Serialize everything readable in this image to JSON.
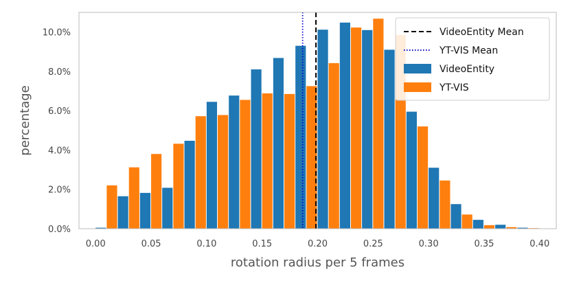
{
  "chart_data": {
    "type": "bar",
    "xlabel": "rotation radius per 5 frames",
    "ylabel": "percentage",
    "xlim": [
      -0.015,
      0.415
    ],
    "ylim": [
      0,
      11.0
    ],
    "bin_width": 0.02,
    "x_ticks": [
      0.0,
      0.05,
      0.1,
      0.15,
      0.2,
      0.25,
      0.3,
      0.35,
      0.4
    ],
    "x_tick_labels": [
      "0.00",
      "0.05",
      "0.10",
      "0.15",
      "0.20",
      "0.25",
      "0.30",
      "0.35",
      "0.40"
    ],
    "y_ticks": [
      0,
      2,
      4,
      6,
      8,
      10
    ],
    "y_tick_labels": [
      "0.0%",
      "2.0%",
      "4.0%",
      "6.0%",
      "8.0%",
      "10.0%"
    ],
    "grid": false,
    "legend_position": "top-right",
    "bin_starts": [
      0.0,
      0.02,
      0.04,
      0.06,
      0.08,
      0.1,
      0.12,
      0.14,
      0.16,
      0.18,
      0.2,
      0.22,
      0.24,
      0.26,
      0.28,
      0.3,
      0.32,
      0.34,
      0.36,
      0.38
    ],
    "series": [
      {
        "name": "VideoEntity",
        "color": "#1f77b4",
        "values": [
          0.05,
          1.65,
          1.82,
          2.08,
          4.47,
          6.45,
          6.77,
          8.1,
          8.68,
          9.3,
          10.12,
          10.48,
          10.1,
          9.1,
          5.95,
          3.1,
          1.25,
          0.45,
          0.2,
          0.05
        ]
      },
      {
        "name": "YT-VIS",
        "color": "#ff7f0e",
        "values": [
          2.2,
          3.12,
          3.8,
          4.32,
          5.72,
          5.78,
          6.55,
          6.88,
          6.85,
          7.25,
          8.42,
          10.23,
          10.68,
          9.85,
          5.2,
          2.45,
          0.72,
          0.18,
          0.08,
          0.03
        ]
      }
    ],
    "reference_lines": [
      {
        "name": "VideoEntity Mean",
        "x": 0.1985,
        "color": "#000000",
        "style": "dashed"
      },
      {
        "name": "YT-VIS Mean",
        "x": 0.1865,
        "color": "#0000cc",
        "style": "dotted"
      }
    ]
  }
}
